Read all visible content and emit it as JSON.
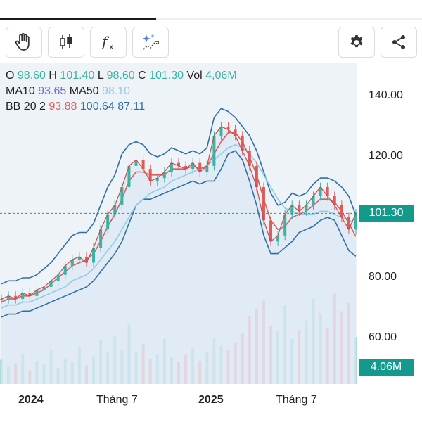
{
  "progress": {
    "fraction": 0.37
  },
  "toolbar": {
    "left_buttons": [
      "hand-icon",
      "candlestick-icon",
      "function-icon",
      "ai-sparkle-icon"
    ],
    "right_buttons": [
      "gear-icon",
      "share-icon"
    ]
  },
  "legend": {
    "o_label": "O",
    "o_value": "98.60",
    "h_label": "H",
    "h_value": "101.40",
    "l_label": "L",
    "l_value": "98.60",
    "c_label": "C",
    "c_value": "101.30",
    "vol_label": "Vol",
    "vol_value": "4,06M",
    "ma10_label": "MA10",
    "ma10_value": "93.65",
    "ma50_label": "MA50",
    "ma50_value": "98.10",
    "bb_label": "BB 20 2",
    "bb_mid": "93.88",
    "bb_upper": "100.64",
    "bb_lower": "87.11"
  },
  "colors": {
    "teal": "#3bb3a3",
    "purple": "#7b68c9",
    "light_blue": "#8ecbe8",
    "red": "#e05a5a",
    "dark_blue": "#2f6fa8",
    "tag": "#149a8c"
  },
  "chart_data": {
    "type": "line",
    "y_ticks": [
      "140.00",
      "120.00",
      "100.00",
      "80.00",
      "60.00"
    ],
    "x_ticks": [
      "2024",
      "Tháng 7",
      "2025",
      "Tháng 7"
    ],
    "ylim": [
      55,
      145
    ],
    "last_price_label": "101.30",
    "last_price": 101.3,
    "last_volume_label": "4.06M",
    "x": [
      0,
      10,
      20,
      30,
      40,
      50,
      60,
      70,
      80,
      90,
      100,
      110,
      120,
      130,
      140,
      150,
      160,
      170,
      180,
      190,
      200,
      210,
      220,
      230,
      240,
      250,
      260,
      270,
      280,
      290,
      300,
      310,
      320,
      330,
      340,
      350,
      360,
      370,
      380,
      390,
      400,
      410,
      420,
      430,
      440,
      450,
      460,
      470,
      480,
      490,
      500
    ],
    "close": [
      73,
      74,
      73,
      75,
      74,
      76,
      77,
      79,
      81,
      84,
      86,
      87,
      85,
      90,
      96,
      101,
      104,
      110,
      117,
      119,
      116,
      112,
      113,
      115,
      118,
      117,
      116,
      118,
      115,
      117,
      127,
      130,
      129,
      127,
      122,
      117,
      110,
      99,
      92,
      94,
      101,
      104,
      102,
      104,
      107,
      110,
      107,
      104,
      100,
      96,
      101.3
    ],
    "ma10": [
      72,
      73,
      73,
      74,
      74,
      75,
      76,
      78,
      80,
      82,
      84,
      85,
      86,
      88,
      92,
      97,
      101,
      106,
      112,
      115,
      115,
      114,
      114,
      114,
      116,
      116,
      116,
      117,
      116,
      117,
      121,
      125,
      128,
      128,
      125,
      120,
      114,
      106,
      99,
      96,
      97,
      100,
      101,
      102,
      104,
      106,
      106,
      105,
      102,
      98,
      93.65
    ],
    "ma50": [
      70,
      71,
      71,
      72,
      72,
      73,
      74,
      75,
      76,
      77,
      79,
      80,
      81,
      83,
      86,
      89,
      92,
      96,
      100,
      104,
      106,
      108,
      109,
      110,
      112,
      113,
      114,
      115,
      116,
      117,
      119,
      121,
      123,
      124,
      123,
      121,
      118,
      114,
      110,
      106,
      103,
      102,
      101,
      101,
      101,
      102,
      102,
      101,
      100,
      99,
      98.1
    ],
    "bb_upper": [
      78,
      79,
      79,
      80,
      80,
      81,
      83,
      85,
      88,
      91,
      94,
      95,
      95,
      98,
      104,
      110,
      114,
      121,
      124,
      125,
      124,
      121,
      120,
      121,
      123,
      122,
      121,
      122,
      121,
      123,
      133,
      136,
      135,
      133,
      130,
      127,
      122,
      115,
      108,
      104,
      105,
      108,
      107,
      108,
      111,
      113,
      113,
      112,
      110,
      107,
      100.64
    ],
    "bb_lower": [
      67,
      68,
      68,
      69,
      69,
      70,
      71,
      72,
      73,
      74,
      75,
      76,
      77,
      79,
      82,
      85,
      88,
      92,
      98,
      104,
      106,
      106,
      107,
      108,
      109,
      110,
      111,
      112,
      111,
      112,
      112,
      116,
      121,
      122,
      119,
      112,
      104,
      94,
      88,
      88,
      90,
      92,
      95,
      96,
      97,
      99,
      100,
      99,
      94,
      89,
      87.11
    ],
    "volume": [
      2.1,
      1.5,
      1.8,
      2.6,
      1.2,
      2.0,
      1.7,
      2.9,
      1.4,
      2.2,
      1.9,
      3.2,
      1.6,
      2.4,
      3.8,
      2.7,
      4.1,
      3.0,
      5.2,
      2.8,
      3.5,
      2.2,
      2.6,
      3.9,
      2.3,
      1.9,
      2.5,
      3.1,
      2.0,
      2.7,
      4.0,
      3.3,
      2.9,
      3.6,
      4.4,
      5.9,
      6.5,
      7.2,
      5.0,
      4.6,
      6.8,
      3.9,
      4.7,
      5.5,
      7.4,
      6.1,
      4.8,
      7.9,
      6.3,
      7.0,
      4.06
    ]
  }
}
